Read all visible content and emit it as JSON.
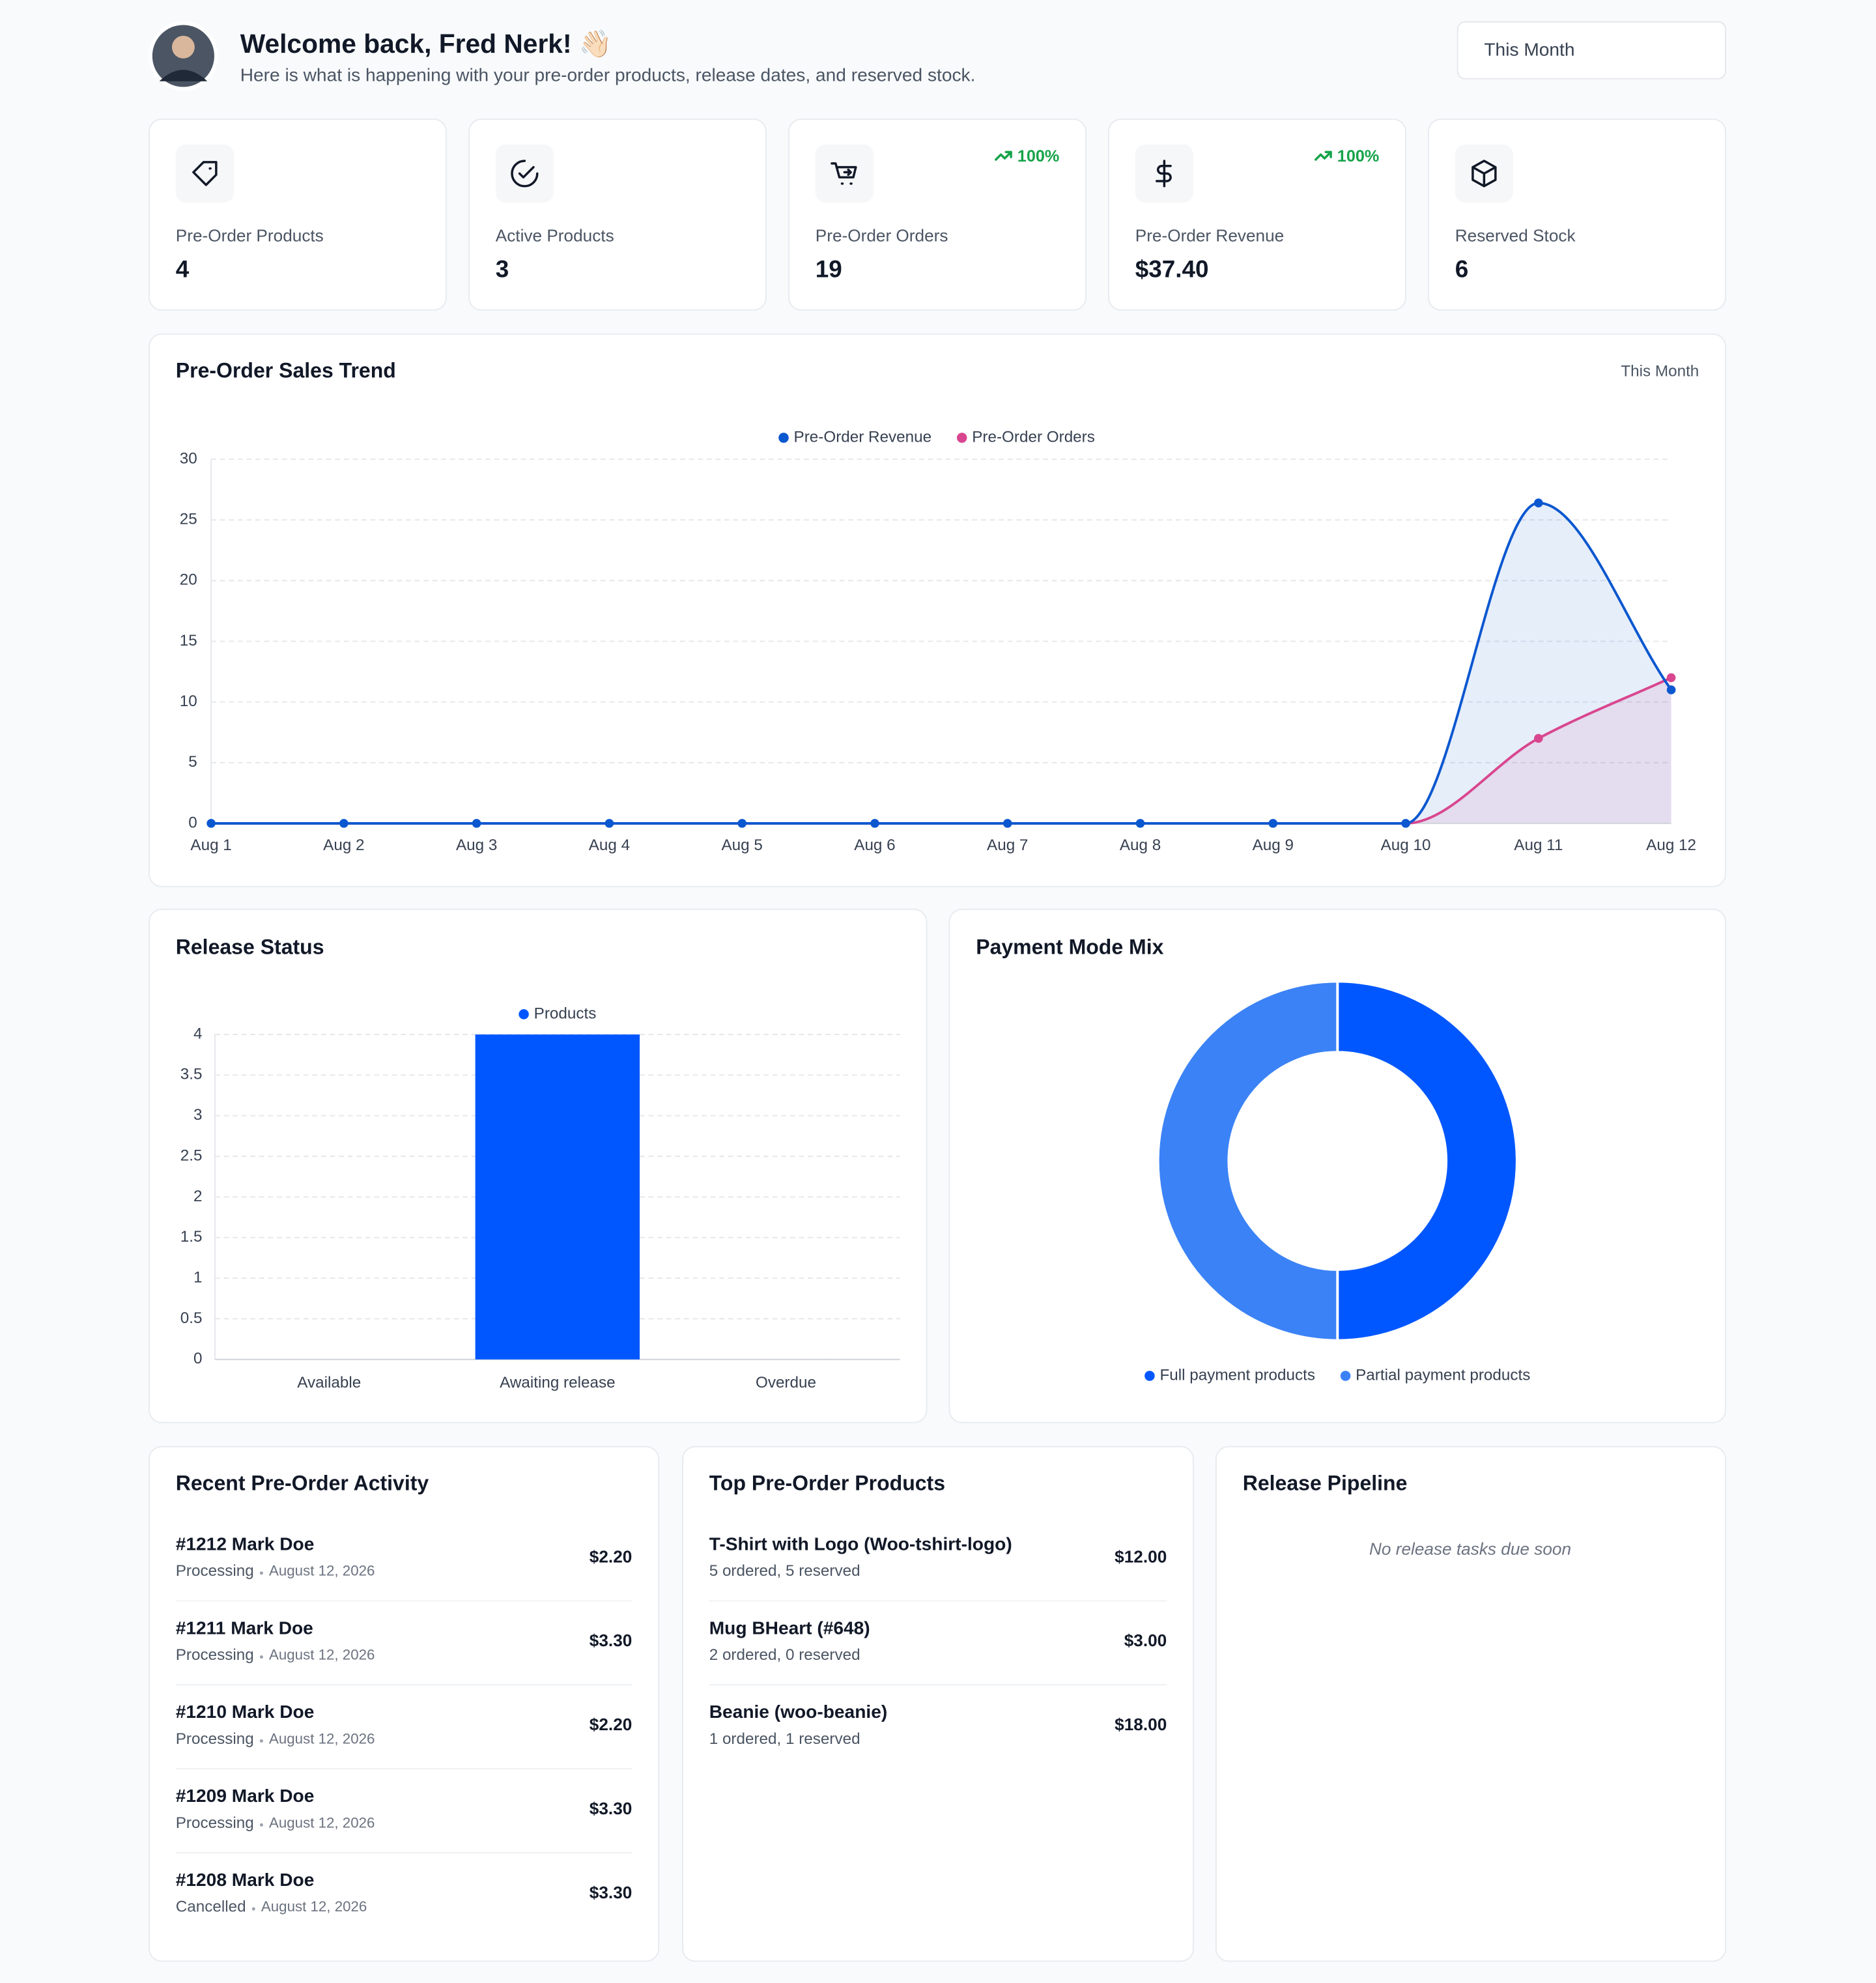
{
  "header": {
    "title": "Welcome back, Fred Nerk! 👋🏻",
    "subtitle": "Here is what is happening with your pre-order products, release dates, and reserved stock.",
    "period": "This Month"
  },
  "stats": [
    {
      "label": "Pre-Order Products",
      "value": "4"
    },
    {
      "label": "Active Products",
      "value": "3"
    },
    {
      "label": "Pre-Order Orders",
      "value": "19",
      "trend": "100%"
    },
    {
      "label": "Pre-Order Revenue",
      "value": "$37.40",
      "trend": "100%"
    },
    {
      "label": "Reserved Stock",
      "value": "6"
    }
  ],
  "chart_data": [
    {
      "type": "line",
      "title": "Pre-Order Sales Trend",
      "period": "This Month",
      "categories": [
        "Aug 1",
        "Aug 2",
        "Aug 3",
        "Aug 4",
        "Aug 5",
        "Aug 6",
        "Aug 7",
        "Aug 8",
        "Aug 9",
        "Aug 10",
        "Aug 11",
        "Aug 12"
      ],
      "series": [
        {
          "name": "Pre-Order Revenue",
          "color": "#0b57d0",
          "values": [
            0,
            0,
            0,
            0,
            0,
            0,
            0,
            0,
            0,
            0,
            26.4,
            11
          ]
        },
        {
          "name": "Pre-Order Orders",
          "color": "#d9468f",
          "values": [
            0,
            0,
            0,
            0,
            0,
            0,
            0,
            0,
            0,
            0,
            7,
            12
          ]
        }
      ],
      "ylim": [
        0,
        30
      ],
      "yticks": [
        0,
        5,
        10,
        15,
        20,
        25,
        30
      ],
      "grid": true,
      "legend": "top"
    },
    {
      "type": "bar",
      "title": "Release Status",
      "categories": [
        "Available",
        "Awaiting release",
        "Overdue"
      ],
      "series": [
        {
          "name": "Products",
          "color": "#0057ff",
          "values": [
            0,
            4,
            0
          ]
        }
      ],
      "ylim": [
        0,
        4
      ],
      "yticks": [
        0,
        0.5,
        1,
        1.5,
        2,
        2.5,
        3,
        3.5,
        4
      ],
      "grid": true,
      "legend": "top"
    },
    {
      "type": "pie",
      "title": "Payment Mode Mix",
      "categories": [
        "Full payment products",
        "Partial payment products"
      ],
      "values": [
        50,
        50
      ],
      "colors": [
        "#0057ff",
        "#3b82f6"
      ],
      "donut": true,
      "legend": "bottom"
    }
  ],
  "activity": {
    "title": "Recent Pre-Order Activity",
    "items": [
      {
        "name": "#1212 Mark Doe",
        "status": "Processing",
        "date": "August 12, 2026",
        "amount": "$2.20"
      },
      {
        "name": "#1211 Mark Doe",
        "status": "Processing",
        "date": "August 12, 2026",
        "amount": "$3.30"
      },
      {
        "name": "#1210 Mark Doe",
        "status": "Processing",
        "date": "August 12, 2026",
        "amount": "$2.20"
      },
      {
        "name": "#1209 Mark Doe",
        "status": "Processing",
        "date": "August 12, 2026",
        "amount": "$3.30"
      },
      {
        "name": "#1208 Mark Doe",
        "status": "Cancelled",
        "date": "August 12, 2026",
        "amount": "$3.30"
      }
    ]
  },
  "top_products": {
    "title": "Top Pre-Order Products",
    "items": [
      {
        "name": "T-Shirt with Logo (Woo-tshirt-logo)",
        "detail": "5 ordered, 5 reserved",
        "amount": "$12.00"
      },
      {
        "name": "Mug BHeart (#648)",
        "detail": "2 ordered, 0 reserved",
        "amount": "$3.00"
      },
      {
        "name": "Beanie (woo-beanie)",
        "detail": "1 ordered, 1 reserved",
        "amount": "$18.00"
      }
    ]
  },
  "pipeline": {
    "title": "Release Pipeline",
    "empty": "No release tasks due soon"
  }
}
